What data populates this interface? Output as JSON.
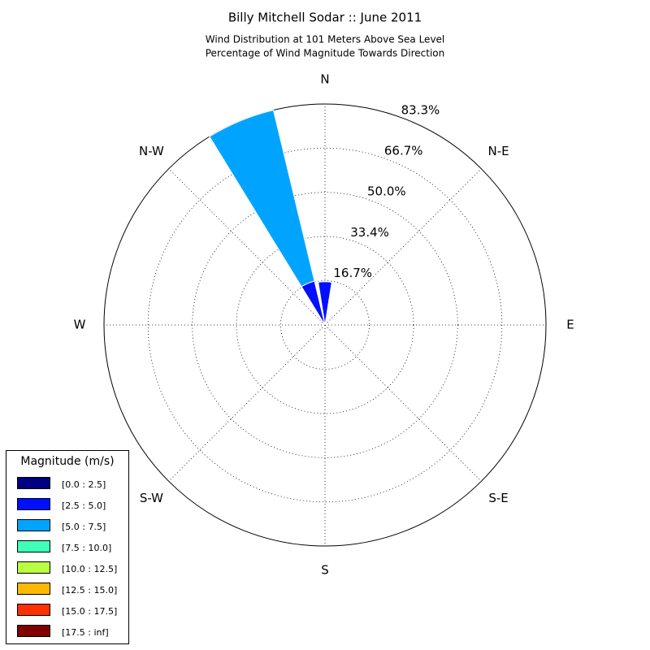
{
  "chart_data": {
    "type": "windrose",
    "title": "Billy Mitchell Sodar :: June 2011",
    "subtitle": [
      "Wind Distribution at 101 Meters Above Sea Level",
      "Percentage of Wind Magnitude Towards Direction"
    ],
    "directions": [
      0,
      22.5,
      45,
      67.5,
      90,
      112.5,
      135,
      157.5,
      180,
      202.5,
      225,
      247.5,
      270,
      292.5,
      315,
      337.5
    ],
    "xticks": [
      {
        "value": 0,
        "label": "N"
      },
      {
        "value": 45,
        "label": "N-E"
      },
      {
        "value": 90,
        "label": "E"
      },
      {
        "value": 135,
        "label": "S-E"
      },
      {
        "value": 180,
        "label": "S"
      },
      {
        "value": 225,
        "label": "S-W"
      },
      {
        "value": 270,
        "label": "W"
      },
      {
        "value": 315,
        "label": "N-W"
      }
    ],
    "rlim": [
      0,
      83.3
    ],
    "rticks": [
      {
        "value": 16.7,
        "label": "16.7%"
      },
      {
        "value": 33.4,
        "label": "33.4%"
      },
      {
        "value": 50.0,
        "label": "50.0%"
      },
      {
        "value": 66.7,
        "label": "66.7%"
      },
      {
        "value": 83.3,
        "label": "83.3%"
      }
    ],
    "legend_title": "Magnitude (m/s)",
    "legend": "lower left",
    "series": [
      {
        "name": "[0.0 : 2.5]",
        "color": "#000080",
        "values": [
          0,
          0,
          0,
          0,
          0,
          0,
          0,
          0,
          0,
          0,
          0,
          0,
          0,
          0,
          0,
          0
        ]
      },
      {
        "name": "[2.5 : 5.0]",
        "color": "#0010ff",
        "values": [
          16.3,
          0,
          0,
          0,
          0,
          0,
          0,
          0,
          0,
          0,
          0,
          0,
          0,
          0,
          0,
          17.0
        ]
      },
      {
        "name": "[5.0 : 7.5]",
        "color": "#00a4ff",
        "values": [
          0,
          0,
          0,
          0,
          0,
          0,
          0,
          0,
          0,
          0,
          0,
          0,
          0,
          0,
          0,
          66.3
        ]
      },
      {
        "name": "[7.5 : 10.0]",
        "color": "#40ffb7",
        "values": [
          0,
          0,
          0,
          0,
          0,
          0,
          0,
          0,
          0,
          0,
          0,
          0,
          0,
          0,
          0,
          0
        ]
      },
      {
        "name": "[10.0 : 12.5]",
        "color": "#b7ff40",
        "values": [
          0,
          0,
          0,
          0,
          0,
          0,
          0,
          0,
          0,
          0,
          0,
          0,
          0,
          0,
          0,
          0
        ]
      },
      {
        "name": "[12.5 : 15.0]",
        "color": "#ffb900",
        "values": [
          0,
          0,
          0,
          0,
          0,
          0,
          0,
          0,
          0,
          0,
          0,
          0,
          0,
          0,
          0,
          0
        ]
      },
      {
        "name": "[15.0 : 17.5]",
        "color": "#ff3000",
        "values": [
          0,
          0,
          0,
          0,
          0,
          0,
          0,
          0,
          0,
          0,
          0,
          0,
          0,
          0,
          0,
          0
        ]
      },
      {
        "name": "[17.5 : inf]",
        "color": "#800000",
        "values": [
          0,
          0,
          0,
          0,
          0,
          0,
          0,
          0,
          0,
          0,
          0,
          0,
          0,
          0,
          0,
          0
        ]
      }
    ]
  }
}
